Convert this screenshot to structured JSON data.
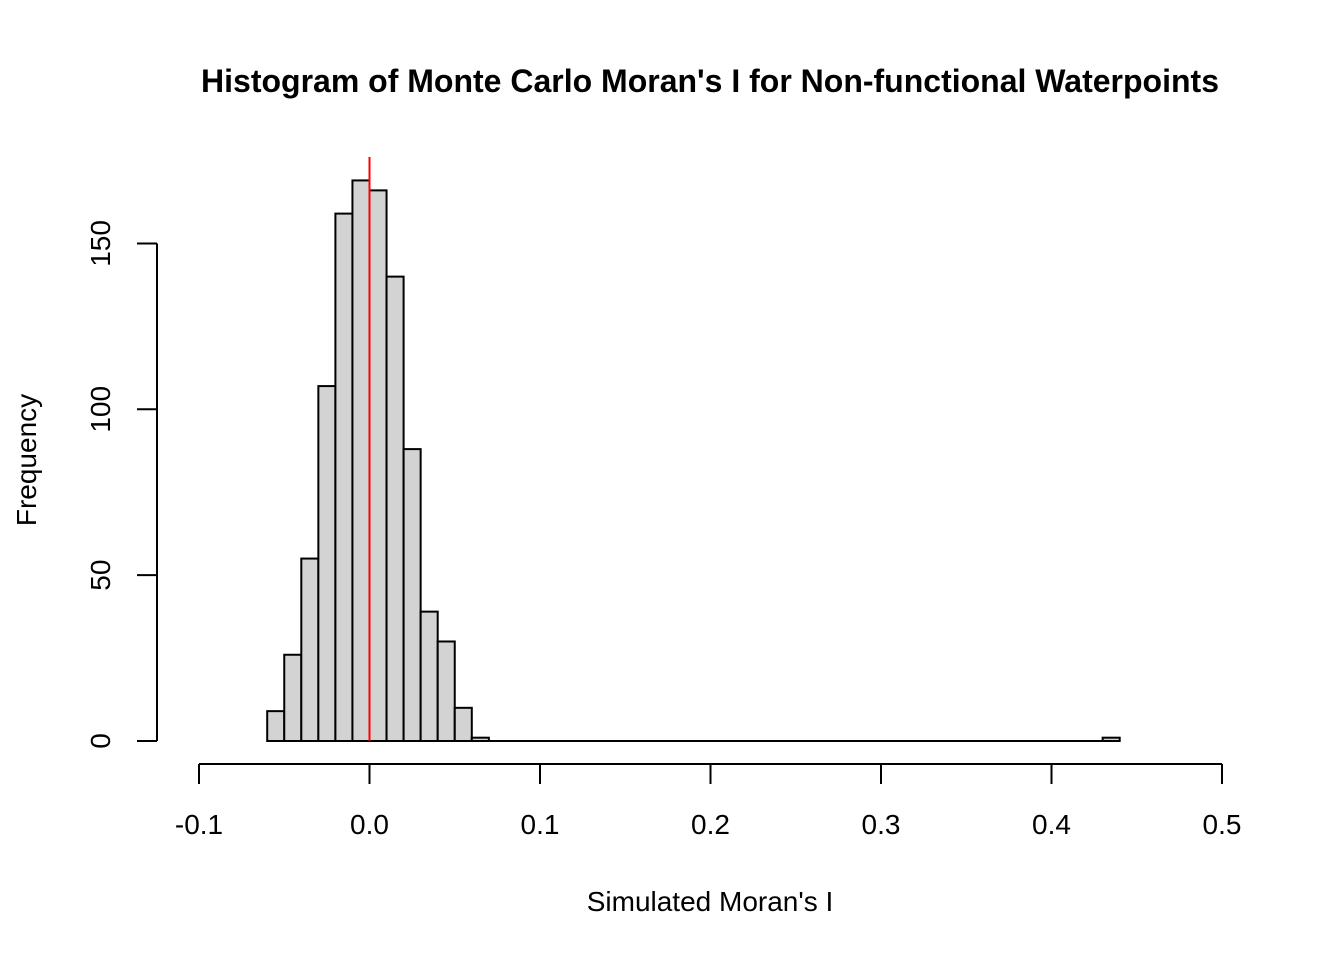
{
  "chart_data": {
    "type": "bar",
    "title": "Histogram of Monte Carlo Moran's I for Non-functional Waterpoints",
    "xlabel": "Simulated Moran's I",
    "ylabel": "Frequency",
    "xlim": [
      -0.1,
      0.5
    ],
    "ylim": [
      0,
      175
    ],
    "xticks": [
      "-0.1",
      "0.0",
      "0.1",
      "0.2",
      "0.3",
      "0.4",
      "0.5"
    ],
    "yticks": [
      "0",
      "50",
      "100",
      "150"
    ],
    "bin_width": 0.01,
    "bins": [
      {
        "start": -0.06,
        "count": 9
      },
      {
        "start": -0.05,
        "count": 26
      },
      {
        "start": -0.04,
        "count": 55
      },
      {
        "start": -0.03,
        "count": 107
      },
      {
        "start": -0.02,
        "count": 159
      },
      {
        "start": -0.01,
        "count": 169
      },
      {
        "start": 0.0,
        "count": 166
      },
      {
        "start": 0.01,
        "count": 140
      },
      {
        "start": 0.02,
        "count": 88
      },
      {
        "start": 0.03,
        "count": 39
      },
      {
        "start": 0.04,
        "count": 30
      },
      {
        "start": 0.05,
        "count": 10
      },
      {
        "start": 0.06,
        "count": 1
      },
      {
        "start": 0.43,
        "count": 1
      }
    ],
    "reference_line": {
      "x": 0.0,
      "color": "#ff0000"
    },
    "bar_fill": "#d3d3d3",
    "bar_stroke": "#000000"
  }
}
